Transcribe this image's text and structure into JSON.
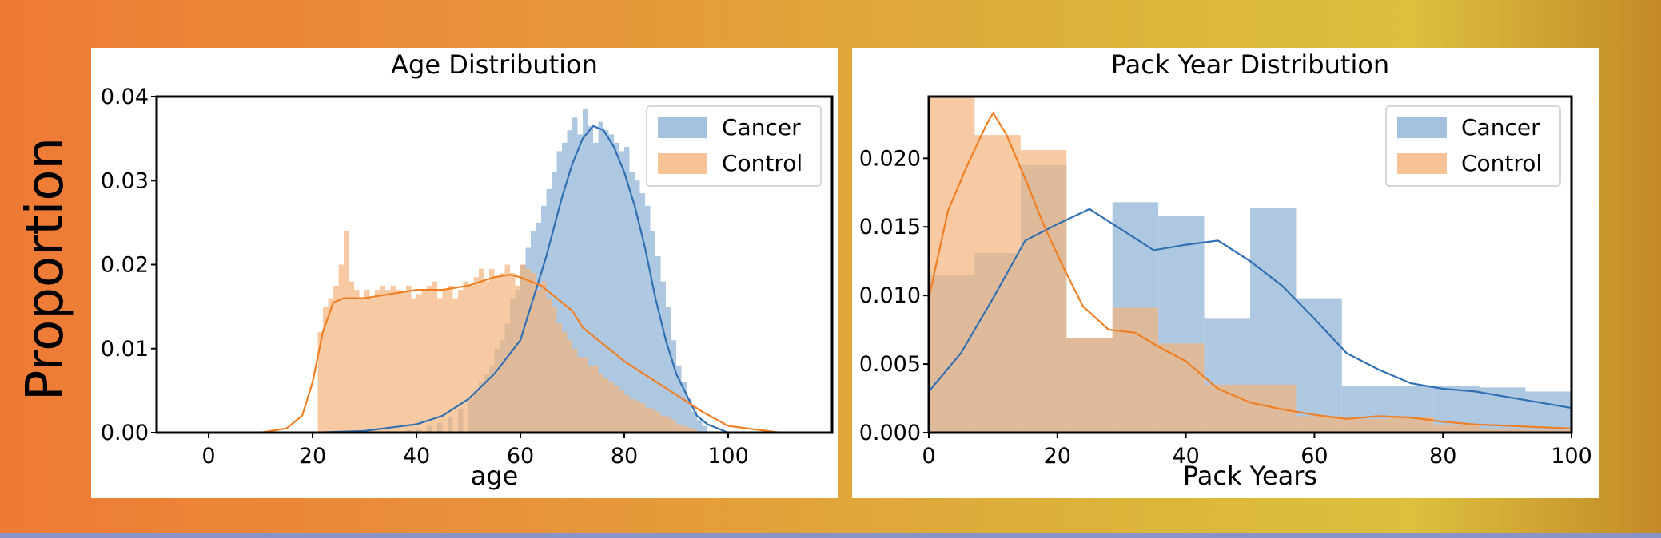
{
  "side_label": "Proportion",
  "colors": {
    "cancer": "#2f6fb2",
    "control": "#ef7f22",
    "cancer_fill": "#8db1d6",
    "control_fill": "#f4b37c"
  },
  "chart_data": [
    {
      "type": "bar",
      "title": "Age Distribution",
      "xlabel": "age",
      "ylabel": "",
      "xlim": [
        -10,
        120
      ],
      "ylim": [
        0,
        0.04
      ],
      "xticks": [
        0,
        20,
        40,
        60,
        80,
        100
      ],
      "yticks": [
        0.0,
        0.01,
        0.02,
        0.03,
        0.04
      ],
      "ytick_labels": [
        "0.00",
        "0.01",
        "0.02",
        "0.03",
        "0.04"
      ],
      "legend": {
        "position": "top-right",
        "entries": [
          "Cancer",
          "Control"
        ]
      },
      "series": [
        {
          "name": "Cancer",
          "bin_width": 1,
          "hist_x": [
            30,
            34,
            38,
            40,
            42,
            44,
            46,
            48,
            50,
            51,
            52,
            53,
            54,
            55,
            56,
            57,
            58,
            59,
            60,
            61,
            62,
            63,
            64,
            65,
            66,
            67,
            68,
            69,
            70,
            71,
            72,
            73,
            74,
            75,
            76,
            77,
            78,
            79,
            80,
            81,
            82,
            83,
            84,
            85,
            86,
            87,
            88,
            89,
            90,
            91,
            92,
            93,
            94,
            95
          ],
          "hist_y": [
            0.0001,
            0.0002,
            0.0003,
            0.0005,
            0.0008,
            0.0012,
            0.0018,
            0.0028,
            0.004,
            0.005,
            0.006,
            0.007,
            0.008,
            0.01,
            0.011,
            0.013,
            0.016,
            0.017,
            0.02,
            0.022,
            0.024,
            0.025,
            0.027,
            0.029,
            0.031,
            0.0335,
            0.0345,
            0.036,
            0.0375,
            0.0355,
            0.0385,
            0.0365,
            0.0345,
            0.037,
            0.036,
            0.0355,
            0.0345,
            0.0335,
            0.034,
            0.031,
            0.03,
            0.0285,
            0.027,
            0.024,
            0.021,
            0.018,
            0.015,
            0.011,
            0.008,
            0.006,
            0.004,
            0.0025,
            0.0015,
            0.0008
          ],
          "kde_x": [
            20,
            30,
            40,
            45,
            50,
            55,
            60,
            62,
            65,
            68,
            70,
            72,
            74,
            76,
            78,
            80,
            82,
            84,
            86,
            88,
            90,
            92,
            94,
            96,
            100,
            110
          ],
          "kde_y": [
            0,
            0.0002,
            0.001,
            0.002,
            0.004,
            0.007,
            0.011,
            0.015,
            0.021,
            0.028,
            0.032,
            0.035,
            0.0365,
            0.036,
            0.034,
            0.031,
            0.027,
            0.022,
            0.016,
            0.011,
            0.007,
            0.0045,
            0.002,
            0.001,
            0,
            0
          ]
        },
        {
          "name": "Control",
          "bin_width": 1,
          "hist_x": [
            21,
            22,
            23,
            24,
            25,
            26,
            27,
            28,
            29,
            30,
            31,
            32,
            33,
            34,
            35,
            36,
            37,
            38,
            39,
            40,
            41,
            42,
            43,
            44,
            45,
            46,
            47,
            48,
            49,
            50,
            51,
            52,
            53,
            54,
            55,
            56,
            57,
            58,
            59,
            60,
            61,
            62,
            63,
            64,
            65,
            66,
            67,
            68,
            69,
            70,
            71,
            72,
            73,
            74,
            75,
            76,
            77,
            78,
            79,
            80,
            81,
            82,
            83,
            84,
            85,
            86,
            87,
            88,
            89,
            90,
            91,
            92,
            93
          ],
          "hist_y": [
            0.012,
            0.015,
            0.016,
            0.0175,
            0.02,
            0.024,
            0.018,
            0.017,
            0.016,
            0.017,
            0.016,
            0.017,
            0.0175,
            0.017,
            0.0175,
            0.017,
            0.0168,
            0.0175,
            0.016,
            0.0165,
            0.017,
            0.0175,
            0.018,
            0.016,
            0.017,
            0.0175,
            0.016,
            0.017,
            0.018,
            0.0175,
            0.0185,
            0.0195,
            0.018,
            0.0195,
            0.0185,
            0.019,
            0.02,
            0.019,
            0.0175,
            0.02,
            0.0195,
            0.019,
            0.017,
            0.018,
            0.016,
            0.015,
            0.013,
            0.012,
            0.011,
            0.01,
            0.009,
            0.009,
            0.008,
            0.008,
            0.007,
            0.0065,
            0.006,
            0.0055,
            0.005,
            0.0045,
            0.004,
            0.0038,
            0.0035,
            0.003,
            0.0028,
            0.0025,
            0.002,
            0.0018,
            0.0015,
            0.001,
            0.0008,
            0.0006,
            0.0004
          ],
          "kde_x": [
            10,
            15,
            18,
            20,
            22,
            24,
            26,
            30,
            35,
            40,
            45,
            50,
            55,
            58,
            60,
            62,
            64,
            66,
            68,
            70,
            72,
            75,
            80,
            85,
            90,
            95,
            100,
            110
          ],
          "kde_y": [
            0,
            0.0005,
            0.002,
            0.006,
            0.012,
            0.0155,
            0.016,
            0.016,
            0.0165,
            0.017,
            0.017,
            0.0175,
            0.0185,
            0.0188,
            0.0185,
            0.018,
            0.0175,
            0.0165,
            0.0155,
            0.0145,
            0.0125,
            0.011,
            0.0085,
            0.0065,
            0.0045,
            0.0025,
            0.0008,
            0
          ]
        }
      ]
    },
    {
      "type": "bar",
      "title": "Pack Year Distribution",
      "xlabel": "Pack Years",
      "ylabel": "",
      "xlim": [
        0,
        100
      ],
      "ylim": [
        0,
        0.0245
      ],
      "xticks": [
        0,
        20,
        40,
        60,
        80,
        100
      ],
      "yticks": [
        0.0,
        0.005,
        0.01,
        0.015,
        0.02
      ],
      "ytick_labels": [
        "0.000",
        "0.005",
        "0.010",
        "0.015",
        "0.020"
      ],
      "legend": {
        "position": "top-right",
        "entries": [
          "Cancer",
          "Control"
        ]
      },
      "series": [
        {
          "name": "Cancer",
          "bin_width": 7.14,
          "hist_x": [
            0,
            7.14,
            14.29,
            21.43,
            28.57,
            35.71,
            42.86,
            50,
            57.14,
            64.29,
            71.43,
            78.57,
            85.71,
            92.86
          ],
          "hist_y": [
            0.0115,
            0.0131,
            0.0195,
            0.0069,
            0.0168,
            0.0158,
            0.0083,
            0.0164,
            0.0098,
            0.0034,
            0.0034,
            0.0034,
            0.0033,
            0.003
          ],
          "kde_x": [
            0,
            5,
            10,
            15,
            20,
            25,
            30,
            35,
            40,
            45,
            50,
            55,
            60,
            65,
            70,
            75,
            80,
            85,
            90,
            95,
            100
          ],
          "kde_y": [
            0.003,
            0.0058,
            0.0098,
            0.014,
            0.0152,
            0.0163,
            0.0148,
            0.0133,
            0.0137,
            0.014,
            0.0125,
            0.0107,
            0.0083,
            0.0058,
            0.0046,
            0.0036,
            0.0032,
            0.003,
            0.0026,
            0.0022,
            0.0018
          ]
        },
        {
          "name": "Control",
          "bin_width": 7.14,
          "hist_x": [
            0,
            7.14,
            14.29,
            21.43,
            28.57,
            35.71,
            42.86,
            50,
            57.14,
            64.29,
            71.43,
            78.57,
            85.71,
            92.86
          ],
          "hist_y": [
            0.0247,
            0.0217,
            0.0206,
            0.0069,
            0.0091,
            0.0065,
            0.0035,
            0.0035,
            0.0012,
            0.001,
            0.0011,
            0.0006,
            0.0003,
            0.0002
          ],
          "kde_x": [
            0,
            3,
            6,
            9,
            10,
            12,
            15,
            18,
            21,
            24,
            28,
            32,
            36,
            40,
            45,
            50,
            55,
            60,
            65,
            70,
            75,
            80,
            85,
            90,
            95,
            100
          ],
          "kde_y": [
            0.0098,
            0.0162,
            0.0195,
            0.0225,
            0.0233,
            0.0218,
            0.0185,
            0.015,
            0.012,
            0.0092,
            0.0075,
            0.0073,
            0.0062,
            0.0052,
            0.0032,
            0.0022,
            0.0017,
            0.0013,
            0.001,
            0.0012,
            0.0011,
            0.0008,
            0.0006,
            0.0005,
            0.0004,
            0.0003
          ]
        }
      ]
    }
  ]
}
